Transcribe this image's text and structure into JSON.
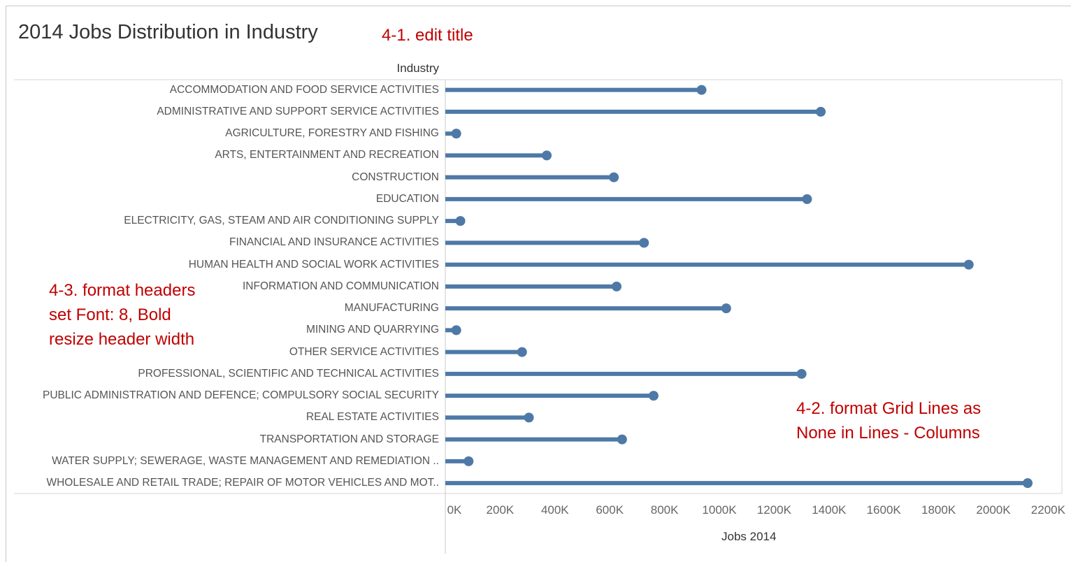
{
  "title": "2014 Jobs Distribution in Industry",
  "annotations": {
    "title_note": "4-1. edit title",
    "headers_note": [
      "4-3. format headers",
      "set Font: 8, Bold",
      "resize header width"
    ],
    "grid_note": [
      "4-2. format Grid Lines as",
      "None in Lines - Columns"
    ]
  },
  "colors": {
    "mark": "#4e79a7",
    "annotation": "#c00000",
    "title": "#333333"
  },
  "chart_data": {
    "type": "bar",
    "style": "lollipop",
    "orientation": "horizontal",
    "ylabel": "Industry",
    "xlabel": "Jobs 2014",
    "xlim": [
      0,
      2250000
    ],
    "xticks": [
      0,
      200000,
      400000,
      600000,
      800000,
      1000000,
      1200000,
      1400000,
      1600000,
      1800000,
      2000000,
      2200000
    ],
    "xtick_labels": [
      "0K",
      "200K",
      "400K",
      "600K",
      "800K",
      "1000K",
      "1200K",
      "1400K",
      "1600K",
      "1800K",
      "2000K",
      "2200K"
    ],
    "grid": false,
    "categories": [
      "ACCOMMODATION AND FOOD SERVICE ACTIVITIES",
      "ADMINISTRATIVE AND SUPPORT SERVICE ACTIVITIES",
      "AGRICULTURE, FORESTRY AND FISHING",
      "ARTS, ENTERTAINMENT AND RECREATION",
      "CONSTRUCTION",
      "EDUCATION",
      "ELECTRICITY, GAS, STEAM AND AIR CONDITIONING SUPPLY",
      "FINANCIAL AND INSURANCE ACTIVITIES",
      "HUMAN HEALTH AND SOCIAL WORK ACTIVITIES",
      "INFORMATION AND COMMUNICATION",
      "MANUFACTURING",
      "MINING AND QUARRYING",
      "OTHER SERVICE ACTIVITIES",
      "PROFESSIONAL, SCIENTIFIC AND TECHNICAL ACTIVITIES",
      "PUBLIC ADMINISTRATION AND DEFENCE; COMPULSORY SOCIAL SECURITY",
      "REAL ESTATE ACTIVITIES",
      "TRANSPORTATION AND STORAGE",
      "WATER SUPPLY; SEWERAGE, WASTE MANAGEMENT AND REMEDIATION ..",
      "WHOLESALE AND RETAIL TRADE; REPAIR OF MOTOR VEHICLES AND MOT.."
    ],
    "values": [
      935000,
      1370000,
      40000,
      370000,
      615000,
      1320000,
      55000,
      725000,
      1910000,
      625000,
      1025000,
      40000,
      280000,
      1300000,
      760000,
      305000,
      645000,
      85000,
      2125000
    ]
  }
}
